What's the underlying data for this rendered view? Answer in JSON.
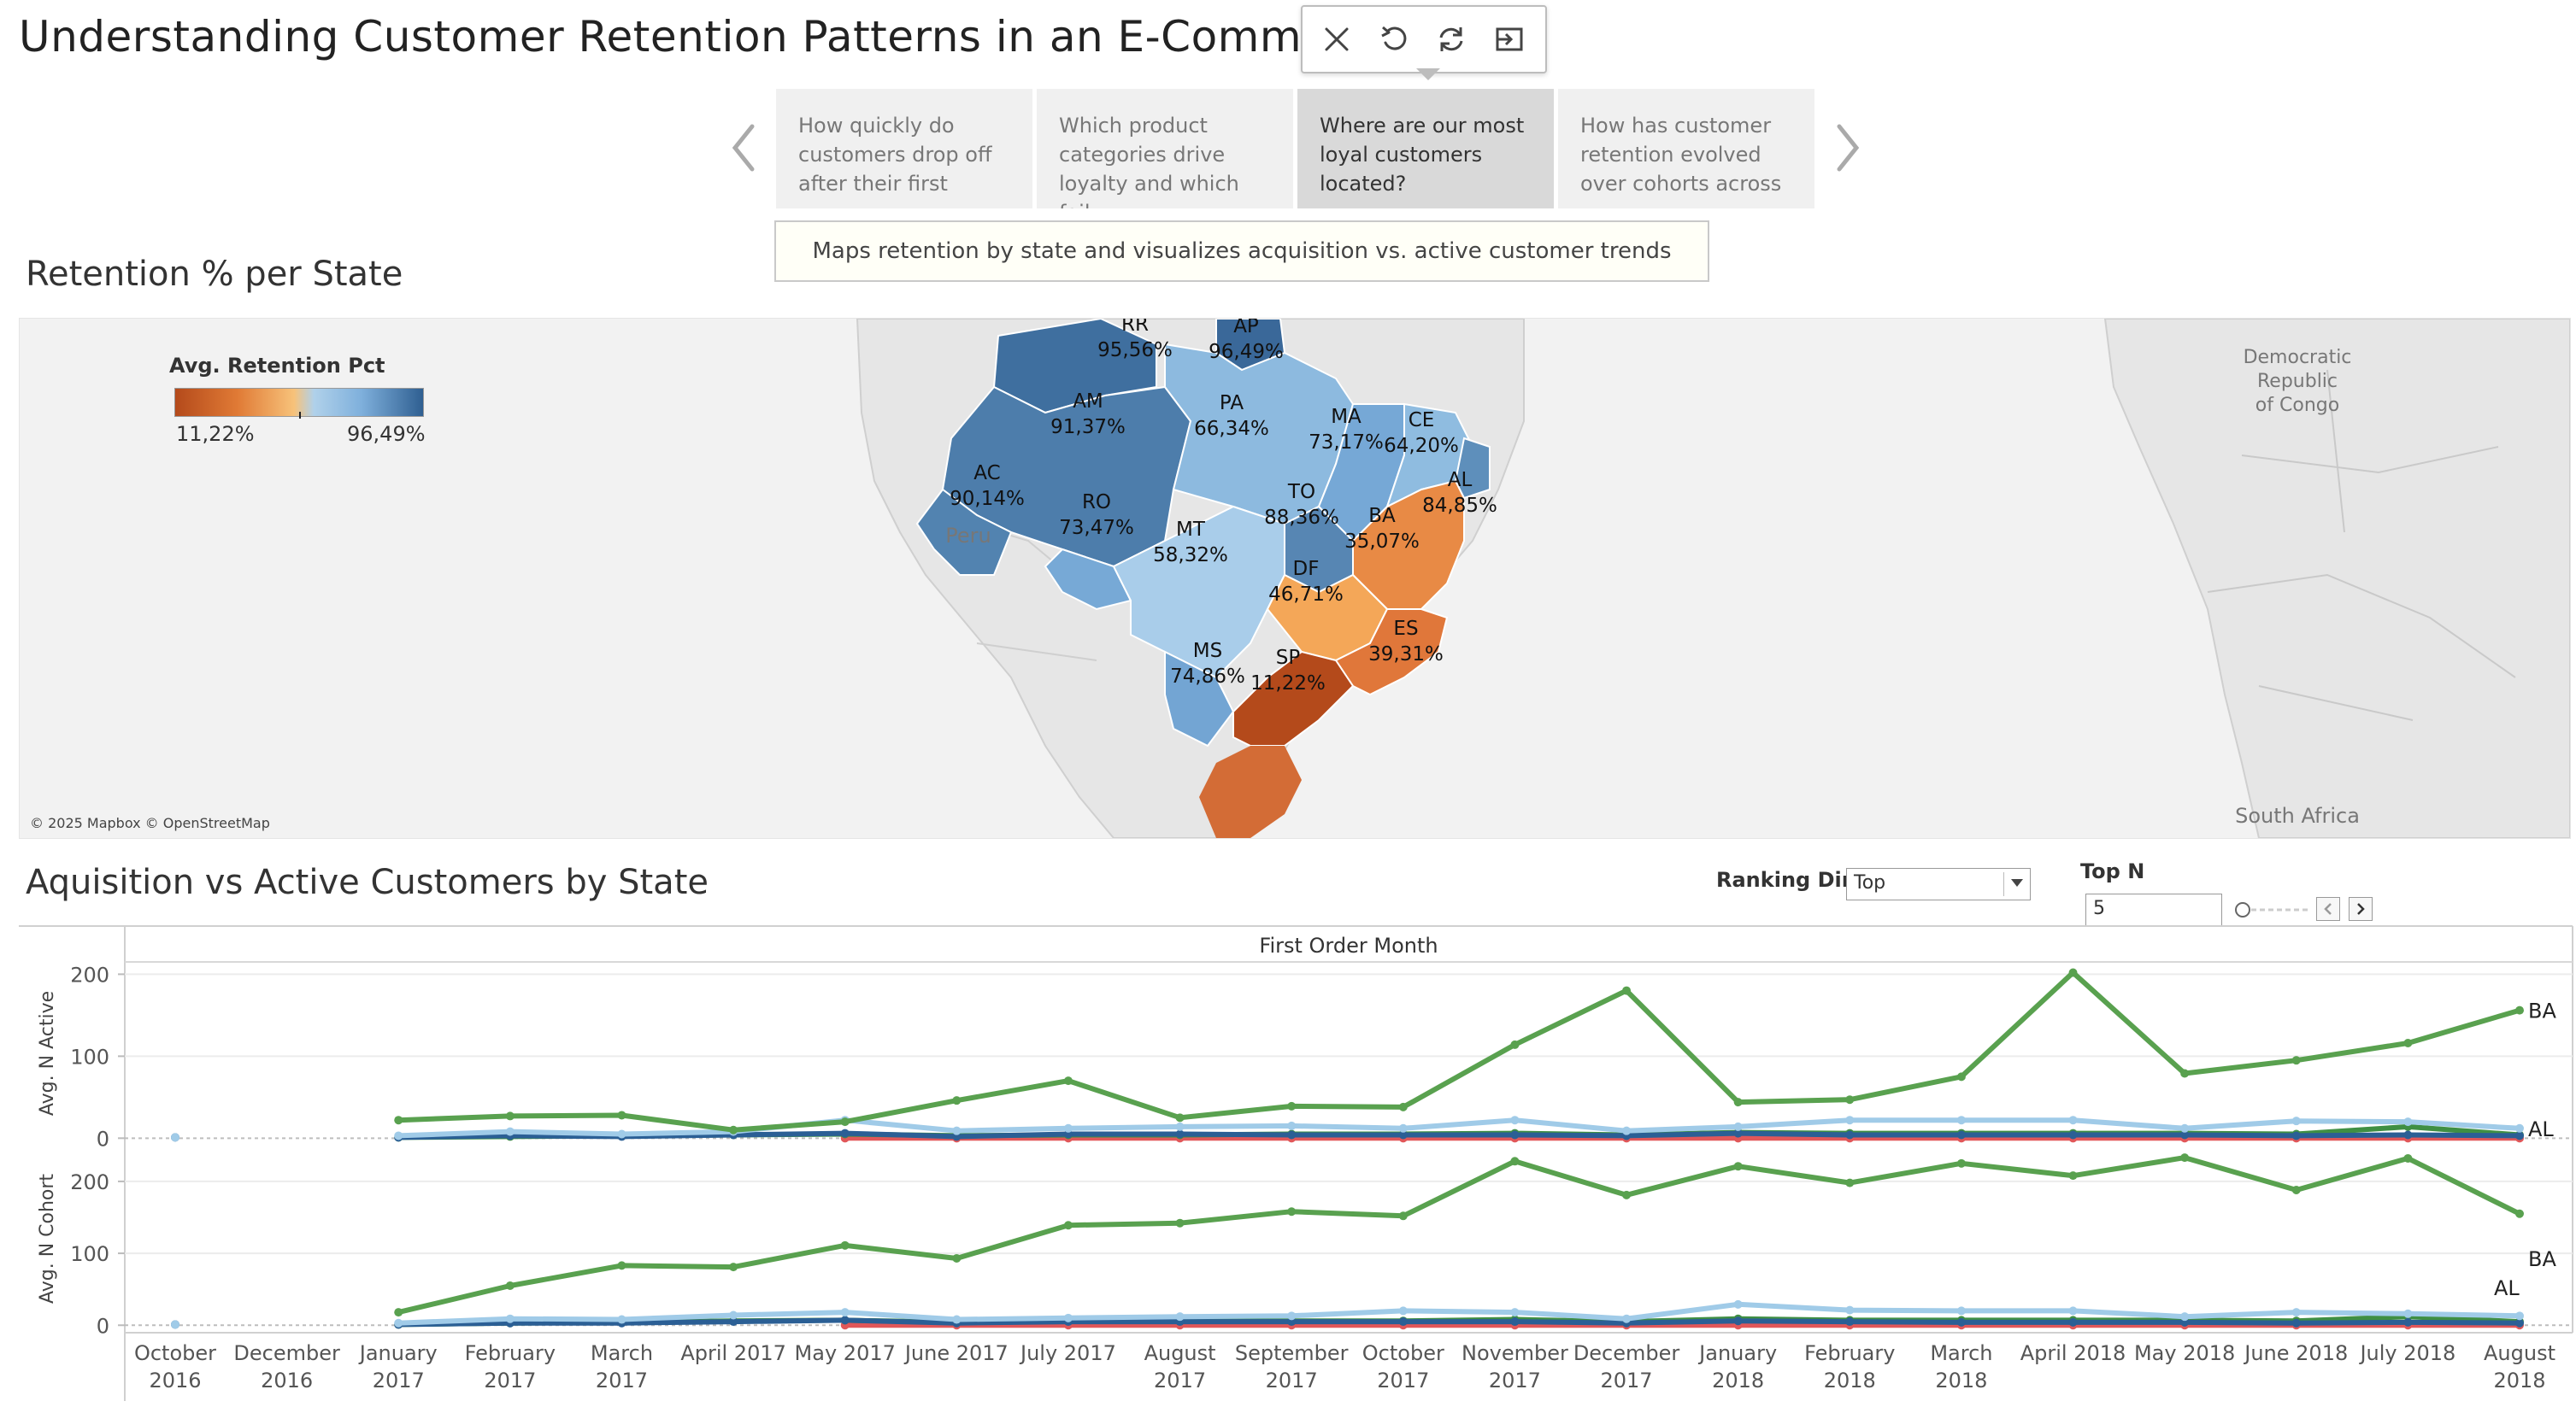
{
  "page": {
    "title": "Understanding Customer Retention Patterns in an E-Commerce Bu"
  },
  "toolbar": {
    "icons": [
      "close-icon",
      "undo-icon",
      "refresh-icon",
      "exit-icon"
    ]
  },
  "story": {
    "tabs": [
      {
        "label": "How quickly do customers drop off after their first",
        "active": false
      },
      {
        "label": "Which product categories drive loyalty and which fail",
        "active": false
      },
      {
        "label": "Where are our most loyal customers located?",
        "active": true
      },
      {
        "label": "How has customer retention evolved over cohorts across",
        "active": false
      }
    ],
    "caption": "Maps retention by state and visualizes acquisition vs. active customer trends"
  },
  "map_section": {
    "title": "Retention % per State",
    "legend": {
      "title": "Avg. Retention Pct",
      "min": "11,22%",
      "max": "96,49%"
    },
    "credit": "© 2025 Mapbox © OpenStreetMap",
    "place_labels": {
      "peru": "Peru",
      "congo": "Democratic Republic of Congo",
      "south_africa": "South Africa"
    },
    "states": [
      {
        "code": "RR",
        "value": "95,56%",
        "color": "#3f6f9f"
      },
      {
        "code": "AP",
        "value": "96,49%",
        "color": "#3a6899"
      },
      {
        "code": "AM",
        "value": "91,37%",
        "color": "#4d7dab"
      },
      {
        "code": "PA",
        "value": "66,34%",
        "color": "#8dbadf"
      },
      {
        "code": "MA",
        "value": "73,17%",
        "color": "#76a8d6"
      },
      {
        "code": "CE",
        "value": "64,20%",
        "color": "#8fbce0"
      },
      {
        "code": "AC",
        "value": "90,14%",
        "color": "#5283b0"
      },
      {
        "code": "RO",
        "value": "73,47%",
        "color": "#77a9d6"
      },
      {
        "code": "TO",
        "value": "88,36%",
        "color": "#5786b3"
      },
      {
        "code": "AL",
        "value": "84,85%",
        "color": "#5e8fbb"
      },
      {
        "code": "MT",
        "value": "58,32%",
        "color": "#a9cdea"
      },
      {
        "code": "BA",
        "value": "35,07%",
        "color": "#e88a45"
      },
      {
        "code": "DF",
        "value": "46,71%",
        "color": "#f4a758"
      },
      {
        "code": "ES",
        "value": "39,31%",
        "color": "#e0773a"
      },
      {
        "code": "MS",
        "value": "74,86%",
        "color": "#73a5d3"
      },
      {
        "code": "SP",
        "value": "11,22%",
        "color": "#b44a1b"
      }
    ]
  },
  "acq_section": {
    "title": "Aquisition vs Active Customers by State",
    "ranking": {
      "label": "Ranking Dir..",
      "value": "Top"
    },
    "topn": {
      "label": "Top N",
      "value": "5"
    }
  },
  "chart_data": {
    "type": "line",
    "x_title": "First Order Month",
    "x": [
      "October 2016",
      "December 2016",
      "January 2017",
      "February 2017",
      "March 2017",
      "April 2017",
      "May 2017",
      "June 2017",
      "July 2017",
      "August 2017",
      "September 2017",
      "October 2017",
      "November 2017",
      "December 2017",
      "January 2018",
      "February 2018",
      "March 2018",
      "April 2018",
      "May 2018",
      "June 2018",
      "July 2018",
      "August 2018"
    ],
    "panels": [
      {
        "ylabel": "Avg. N Active",
        "yticks": [
          0,
          100,
          200
        ],
        "ylim": [
          -8,
          215
        ],
        "end_labels": [
          {
            "series": "BA",
            "text": "BA"
          },
          {
            "series": "AL",
            "text": "AL"
          }
        ],
        "series": [
          {
            "name": "BA",
            "color": "#59a14f",
            "values": [
              null,
              null,
              22,
              27,
              28,
              10,
              20,
              46,
              70,
              25,
              39,
              38,
              114,
              180,
              44,
              47,
              75,
              202,
              79,
              95,
              116,
              156
            ]
          },
          {
            "name": "AL",
            "color": "#a0cbe8",
            "values": [
              1,
              null,
              3,
              8,
              5,
              8,
              22,
              9,
              12,
              14,
              15,
              12,
              22,
              9,
              14,
              22,
              22,
              22,
              12,
              21,
              20,
              12
            ]
          },
          {
            "color": "#2b5f95",
            "values": [
              1,
              null,
              1,
              3,
              2,
              4,
              6,
              2,
              5,
              5,
              4,
              4,
              4,
              3,
              6,
              4,
              4,
              4,
              4,
              3,
              4,
              3
            ]
          },
          {
            "color": "#3f8f43",
            "values": [
              null,
              null,
              1,
              2,
              3,
              4,
              5,
              3,
              4,
              4,
              5,
              5,
              6,
              4,
              7,
              6,
              6,
              6,
              6,
              5,
              14,
              4
            ]
          },
          {
            "color": "#e15759",
            "values": [
              null,
              null,
              null,
              null,
              null,
              null,
              0,
              0,
              0,
              0,
              0,
              0,
              0,
              0,
              0,
              0,
              0,
              0,
              0,
              0,
              0,
              0
            ]
          }
        ]
      },
      {
        "ylabel": "Avg. N Cohort",
        "yticks": [
          0,
          100,
          200
        ],
        "ylim": [
          -8,
          245
        ],
        "end_labels": [
          {
            "series": "BA",
            "text": "BA"
          },
          {
            "series": "AL",
            "text": "AL"
          }
        ],
        "series": [
          {
            "name": "BA",
            "color": "#59a14f",
            "values": [
              null,
              null,
              18,
              55,
              83,
              81,
              111,
              93,
              139,
              142,
              158,
              152,
              228,
              181,
              221,
              198,
              225,
              208,
              233,
              188,
              232,
              155
            ]
          },
          {
            "name": "AL",
            "color": "#a0cbe8",
            "values": [
              1,
              null,
              3,
              9,
              8,
              14,
              18,
              8,
              10,
              12,
              13,
              20,
              18,
              9,
              29,
              21,
              20,
              20,
              12,
              18,
              16,
              13
            ]
          },
          {
            "color": "#2b5f95",
            "values": [
              1,
              null,
              1,
              3,
              3,
              5,
              7,
              3,
              5,
              5,
              5,
              5,
              5,
              3,
              6,
              5,
              4,
              4,
              4,
              3,
              4,
              3
            ]
          },
          {
            "color": "#3f8f43",
            "values": [
              null,
              null,
              1,
              3,
              4,
              6,
              7,
              4,
              6,
              6,
              6,
              6,
              8,
              5,
              9,
              7,
              7,
              7,
              7,
              6,
              12,
              5
            ]
          },
          {
            "color": "#e15759",
            "values": [
              null,
              null,
              null,
              null,
              null,
              null,
              0,
              0,
              0,
              0,
              0,
              0,
              0,
              0,
              0,
              0,
              0,
              0,
              0,
              0,
              0,
              0
            ]
          }
        ]
      }
    ]
  }
}
